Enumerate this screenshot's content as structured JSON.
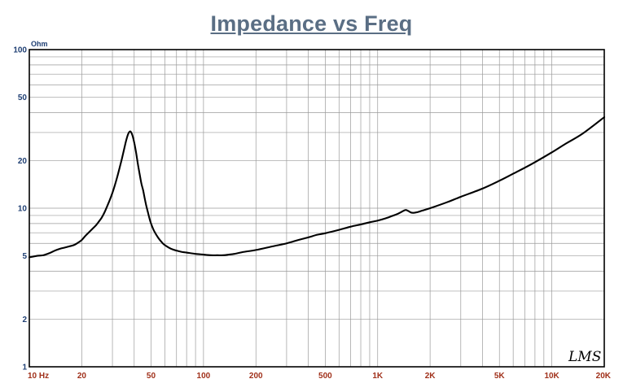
{
  "chart_data": {
    "type": "line",
    "title": "Impedance vs Freq",
    "ylabel": "Ohm",
    "xscale": "log",
    "yscale": "log",
    "xlim": [
      10,
      20000
    ],
    "ylim": [
      1,
      100
    ],
    "grid": true,
    "xticks": [
      {
        "value": 10,
        "label": "10 Hz"
      },
      {
        "value": 20,
        "label": "20"
      },
      {
        "value": 50,
        "label": "50"
      },
      {
        "value": 100,
        "label": "100"
      },
      {
        "value": 200,
        "label": "200"
      },
      {
        "value": 500,
        "label": "500"
      },
      {
        "value": 1000,
        "label": "1K"
      },
      {
        "value": 2000,
        "label": "2K"
      },
      {
        "value": 5000,
        "label": "5K"
      },
      {
        "value": 10000,
        "label": "10K"
      },
      {
        "value": 20000,
        "label": "20K"
      }
    ],
    "yticks": [
      {
        "value": 100,
        "label": "100"
      },
      {
        "value": 50,
        "label": "50"
      },
      {
        "value": 20,
        "label": "20"
      },
      {
        "value": 10,
        "label": "10"
      },
      {
        "value": 5,
        "label": "5"
      },
      {
        "value": 2,
        "label": "2"
      },
      {
        "value": 1,
        "label": "1"
      }
    ],
    "series": [
      {
        "x": [
          10,
          11,
          12,
          13,
          14,
          15,
          16,
          17,
          18,
          19,
          20,
          21,
          22,
          23,
          24,
          25,
          26,
          27,
          28,
          29,
          30,
          31,
          32,
          33,
          34,
          35,
          36,
          37,
          38,
          39,
          40,
          41,
          42,
          43,
          44,
          45,
          46,
          47,
          48,
          49,
          50,
          52,
          55,
          58,
          60,
          65,
          70,
          75,
          80,
          90,
          100,
          110,
          120,
          130,
          140,
          150,
          170,
          200,
          250,
          300,
          350,
          400,
          450,
          500,
          600,
          700,
          800,
          900,
          1000,
          1100,
          1200,
          1300,
          1400,
          1450,
          1500,
          1550,
          1600,
          1700,
          1800,
          2000,
          2500,
          3000,
          4000,
          5000,
          6000,
          7000,
          8000,
          10000,
          12000,
          15000,
          20000
        ],
        "y": [
          4.9,
          5.0,
          5.05,
          5.2,
          5.4,
          5.55,
          5.65,
          5.75,
          5.85,
          6.05,
          6.3,
          6.7,
          7.05,
          7.4,
          7.75,
          8.2,
          8.7,
          9.4,
          10.3,
          11.3,
          12.5,
          14.0,
          15.8,
          18.0,
          20.5,
          23.5,
          26.8,
          29.5,
          30.5,
          29.0,
          26.0,
          22.5,
          19.0,
          16.4,
          14.3,
          13.0,
          11.5,
          10.3,
          9.4,
          8.6,
          8.0,
          7.2,
          6.5,
          6.05,
          5.85,
          5.55,
          5.4,
          5.3,
          5.25,
          5.15,
          5.1,
          5.05,
          5.05,
          5.05,
          5.1,
          5.15,
          5.3,
          5.45,
          5.75,
          6.0,
          6.3,
          6.55,
          6.8,
          6.95,
          7.3,
          7.65,
          7.9,
          8.15,
          8.35,
          8.6,
          8.9,
          9.2,
          9.6,
          9.75,
          9.6,
          9.4,
          9.35,
          9.45,
          9.65,
          10.0,
          10.9,
          11.8,
          13.3,
          14.9,
          16.5,
          18.0,
          19.5,
          22.5,
          25.5,
          29.5,
          37.5
        ]
      }
    ],
    "signature": "LMS",
    "colors": {
      "title": "#5a6e84",
      "curve": "#000000",
      "grid": "#9a9a9a",
      "frame": "#000000",
      "y_tick_text": "#1f3f73",
      "x_tick_text": "#a0301a",
      "unit_text": "#1f3f73"
    }
  }
}
